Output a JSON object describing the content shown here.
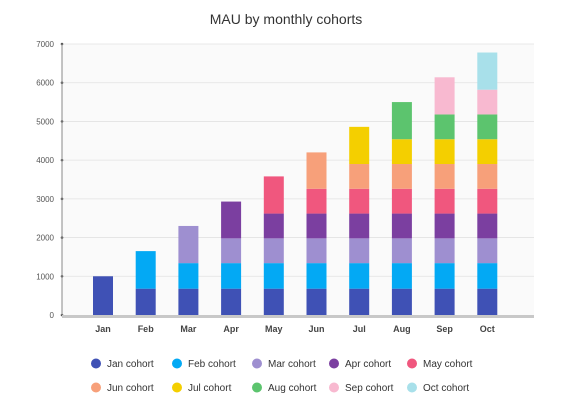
{
  "chart_data": {
    "type": "bar",
    "stacked": true,
    "title": "MAU by monthly cohorts",
    "xlabel": "",
    "ylabel": "",
    "ylim": [
      0,
      7000
    ],
    "yticks": [
      0,
      1000,
      2000,
      3000,
      4000,
      5000,
      6000,
      7000
    ],
    "grid": true,
    "legend_position": "bottom",
    "categories": [
      "Jan",
      "Feb",
      "Mar",
      "Apr",
      "May",
      "Jun",
      "Jul",
      "Aug",
      "Sep",
      "Oct"
    ],
    "series": [
      {
        "name": "Jan cohort",
        "color": "#3f51b5",
        "values": [
          1000,
          680,
          680,
          680,
          680,
          680,
          680,
          680,
          680,
          680
        ]
      },
      {
        "name": "Feb cohort",
        "color": "#03a9f4",
        "values": [
          0,
          970,
          660,
          660,
          660,
          660,
          660,
          660,
          660,
          660
        ]
      },
      {
        "name": "Mar cohort",
        "color": "#9e8fd0",
        "values": [
          0,
          0,
          960,
          640,
          640,
          640,
          640,
          640,
          640,
          640
        ]
      },
      {
        "name": "Apr cohort",
        "color": "#7b3fa0",
        "values": [
          0,
          0,
          0,
          950,
          640,
          640,
          640,
          640,
          640,
          640
        ]
      },
      {
        "name": "May cohort",
        "color": "#f0577e",
        "values": [
          0,
          0,
          0,
          0,
          960,
          640,
          640,
          640,
          640,
          640
        ]
      },
      {
        "name": "Jun cohort",
        "color": "#f7a07a",
        "values": [
          0,
          0,
          0,
          0,
          0,
          940,
          640,
          640,
          640,
          640
        ]
      },
      {
        "name": "Jul cohort",
        "color": "#f4cf00",
        "values": [
          0,
          0,
          0,
          0,
          0,
          0,
          960,
          640,
          640,
          640
        ]
      },
      {
        "name": "Aug cohort",
        "color": "#5cc46e",
        "values": [
          0,
          0,
          0,
          0,
          0,
          0,
          0,
          960,
          640,
          640
        ]
      },
      {
        "name": "Sep cohort",
        "color": "#f8b9d0",
        "values": [
          0,
          0,
          0,
          0,
          0,
          0,
          0,
          0,
          960,
          640
        ]
      },
      {
        "name": "Oct cohort",
        "color": "#a8e0ea",
        "values": [
          0,
          0,
          0,
          0,
          0,
          0,
          0,
          0,
          0,
          960
        ]
      }
    ]
  }
}
